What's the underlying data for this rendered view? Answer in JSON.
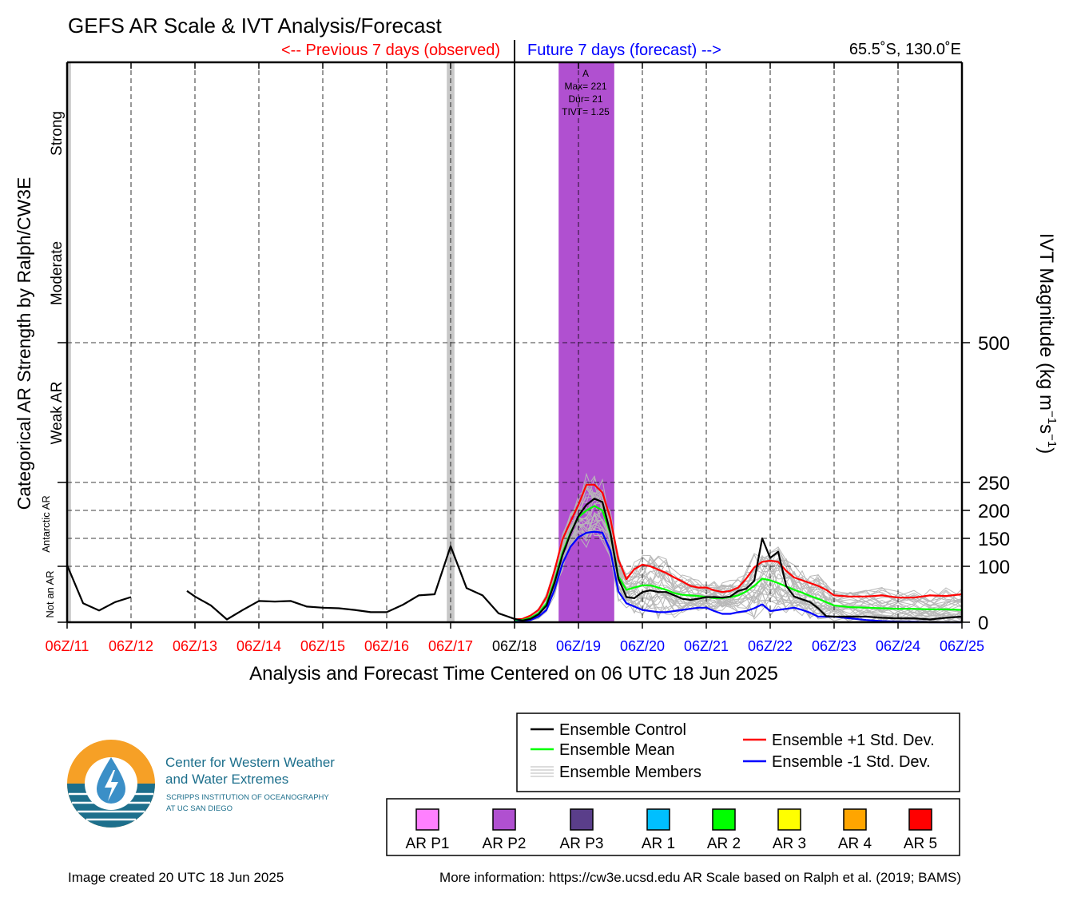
{
  "title": "GEFS AR Scale & IVT Analysis/Forecast",
  "header": {
    "previous_label": "<-- Previous 7 days (observed)",
    "future_label": "Future 7 days (forecast) -->",
    "location": "65.5˚S, 130.0˚E"
  },
  "axes": {
    "xlabel": "Analysis and Forecast Time Centered on 06 UTC 18 Jun 2025",
    "ylabel_left": "Categorical AR Strength by Ralph/CW3E",
    "ylabel_right_main": "IVT Magnitude (kg m",
    "ylabel_right_exp1": "−1",
    "ylabel_right_mid": "s",
    "ylabel_right_exp2": "−1",
    "ylabel_right_end": ")",
    "category_labels": [
      "Not an AR",
      "Antarctic AR",
      "Weak AR",
      "Moderate",
      "Strong"
    ]
  },
  "annotation": {
    "letter": "A",
    "max": "Max= 221",
    "dur": "Dur= 21",
    "tivt": "TIVT= 1.25"
  },
  "legend": {
    "control": "Ensemble Control",
    "mean": "Ensemble Mean",
    "members": "Ensemble Members",
    "plus_sd": "Ensemble +1 Std. Dev.",
    "minus_sd": "Ensemble -1 Std. Dev."
  },
  "ar_scale": [
    {
      "label": "AR P1",
      "color": "#ff80ff"
    },
    {
      "label": "AR P2",
      "color": "#b050d0"
    },
    {
      "label": "AR P3",
      "color": "#5a3e8a"
    },
    {
      "label": "AR 1",
      "color": "#00bfff"
    },
    {
      "label": "AR 2",
      "color": "#00ff00"
    },
    {
      "label": "AR 3",
      "color": "#ffff00"
    },
    {
      "label": "AR 4",
      "color": "#ffa500"
    },
    {
      "label": "AR 5",
      "color": "#ff0000"
    }
  ],
  "logo": {
    "line1": "Center for Western Weather",
    "line2": "and Water Extremes",
    "line3": "SCRIPPS INSTITUTION OF OCEANOGRAPHY",
    "line4": "AT UC SAN DIEGO"
  },
  "footer": {
    "created": "Image created 20 UTC 18 Jun 2025",
    "more_info": "More information: https://cw3e.ucsd.edu AR Scale based on Ralph et al. (2019; BAMS)"
  },
  "colors": {
    "observed": "#ff0000",
    "forecast": "#0000ff",
    "ar_event": "#b050d0",
    "ensemble_mean": "#00ff00",
    "ensemble_plus": "#ff0000",
    "ensemble_minus": "#0000ff",
    "members": "#b8b8b8",
    "observed_ar_bar": "#c8c8c8"
  },
  "chart_data": {
    "type": "line",
    "x_unit": "days since 06Z/11 Jun 2025",
    "xlim": [
      0,
      14
    ],
    "ylim": [
      0,
      1000
    ],
    "y_scale": "IVT 0-250 linear, 250-1000 compressed",
    "xticks": [
      {
        "label": "06Z/11",
        "x": 0,
        "period": "observed"
      },
      {
        "label": "06Z/12",
        "x": 1,
        "period": "observed"
      },
      {
        "label": "06Z/13",
        "x": 2,
        "period": "observed"
      },
      {
        "label": "06Z/14",
        "x": 3,
        "period": "observed"
      },
      {
        "label": "06Z/15",
        "x": 4,
        "period": "observed"
      },
      {
        "label": "06Z/16",
        "x": 5,
        "period": "observed"
      },
      {
        "label": "06Z/17",
        "x": 6,
        "period": "observed"
      },
      {
        "label": "06Z/18",
        "x": 7,
        "period": "now"
      },
      {
        "label": "06Z/19",
        "x": 8,
        "period": "forecast"
      },
      {
        "label": "06Z/20",
        "x": 9,
        "period": "forecast"
      },
      {
        "label": "06Z/21",
        "x": 10,
        "period": "forecast"
      },
      {
        "label": "06Z/22",
        "x": 11,
        "period": "forecast"
      },
      {
        "label": "06Z/23",
        "x": 12,
        "period": "forecast"
      },
      {
        "label": "06Z/24",
        "x": 13,
        "period": "forecast"
      },
      {
        "label": "06Z/25",
        "x": 14,
        "period": "forecast"
      }
    ],
    "yticks": [
      0,
      100,
      150,
      200,
      250,
      500
    ],
    "y_gridlines": [
      100,
      150,
      200,
      250,
      500
    ],
    "observed_ar_periods": [
      [
        0,
        0.06
      ],
      [
        5.94,
        6.06
      ]
    ],
    "ar_event": {
      "x_start": 7.69,
      "x_end": 8.56,
      "ivt_top": 1000,
      "max": 221,
      "duration_h": 21
    },
    "series": [
      {
        "name": "Ensemble Control",
        "color": "#000000",
        "segments": [
          [
            [
              0,
              102
            ],
            [
              0.25,
              34
            ],
            [
              0.5,
              21
            ],
            [
              0.75,
              36
            ],
            [
              1,
              45
            ]
          ],
          [
            [
              1.875,
              56
            ],
            [
              2,
              46
            ],
            [
              2.25,
              30
            ],
            [
              2.5,
              5
            ],
            [
              2.75,
              22
            ],
            [
              3,
              38
            ],
            [
              3.25,
              37
            ],
            [
              3.5,
              38
            ],
            [
              3.75,
              28
            ],
            [
              4,
              26
            ],
            [
              4.25,
              25
            ],
            [
              4.5,
              22
            ],
            [
              4.75,
              18
            ],
            [
              5,
              18
            ],
            [
              5.25,
              31
            ],
            [
              5.5,
              48
            ],
            [
              5.75,
              50
            ],
            [
              6,
              136
            ],
            [
              6.25,
              61
            ],
            [
              6.5,
              48
            ],
            [
              6.75,
              16
            ],
            [
              7,
              6
            ],
            [
              7.125,
              3
            ],
            [
              7.25,
              6
            ],
            [
              7.375,
              14
            ],
            [
              7.5,
              30
            ],
            [
              7.625,
              70
            ],
            [
              7.75,
              120
            ],
            [
              7.875,
              158
            ],
            [
              8,
              190
            ],
            [
              8.125,
              210
            ],
            [
              8.25,
              221
            ],
            [
              8.375,
              215
            ],
            [
              8.5,
              160
            ],
            [
              8.625,
              78
            ],
            [
              8.75,
              45
            ],
            [
              8.875,
              43
            ],
            [
              9,
              54
            ],
            [
              9.125,
              57
            ],
            [
              9.25,
              54
            ],
            [
              9.375,
              54
            ],
            [
              9.5,
              48
            ],
            [
              9.625,
              42
            ],
            [
              9.75,
              40
            ],
            [
              9.875,
              42
            ],
            [
              10,
              45
            ],
            [
              10.125,
              45
            ],
            [
              10.25,
              44
            ],
            [
              10.375,
              46
            ],
            [
              10.5,
              56
            ],
            [
              10.625,
              60
            ],
            [
              10.75,
              74
            ],
            [
              10.875,
              150
            ],
            [
              11,
              115
            ],
            [
              11.125,
              126
            ],
            [
              11.25,
              65
            ],
            [
              11.375,
              46
            ],
            [
              11.5,
              41
            ],
            [
              11.625,
              36
            ],
            [
              11.75,
              25
            ],
            [
              11.875,
              11
            ],
            [
              12,
              10
            ],
            [
              12.25,
              10
            ],
            [
              12.5,
              10
            ],
            [
              12.75,
              8
            ],
            [
              13,
              7
            ],
            [
              13.25,
              7
            ],
            [
              13.5,
              5
            ],
            [
              13.75,
              8
            ],
            [
              14,
              10
            ]
          ]
        ]
      },
      {
        "name": "Ensemble Mean",
        "color": "#00ff00",
        "segments": [
          [
            [
              7,
              4
            ],
            [
              7.125,
              4
            ],
            [
              7.25,
              8
            ],
            [
              7.375,
              16
            ],
            [
              7.5,
              34
            ],
            [
              7.625,
              74
            ],
            [
              7.75,
              124
            ],
            [
              7.875,
              160
            ],
            [
              8,
              188
            ],
            [
              8.125,
              200
            ],
            [
              8.25,
              208
            ],
            [
              8.375,
              200
            ],
            [
              8.5,
              158
            ],
            [
              8.625,
              82
            ],
            [
              8.75,
              58
            ],
            [
              8.875,
              62
            ],
            [
              9,
              66
            ],
            [
              9.125,
              66
            ],
            [
              9.25,
              62
            ],
            [
              9.375,
              58
            ],
            [
              9.5,
              52
            ],
            [
              9.625,
              49
            ],
            [
              9.75,
              48
            ],
            [
              9.875,
              47
            ],
            [
              10,
              45
            ],
            [
              10.125,
              43
            ],
            [
              10.25,
              43
            ],
            [
              10.375,
              45
            ],
            [
              10.5,
              48
            ],
            [
              10.625,
              55
            ],
            [
              10.75,
              65
            ],
            [
              10.875,
              78
            ],
            [
              11,
              75
            ],
            [
              11.125,
              70
            ],
            [
              11.25,
              64
            ],
            [
              11.375,
              58
            ],
            [
              11.5,
              53
            ],
            [
              11.625,
              47
            ],
            [
              11.75,
              42
            ],
            [
              11.875,
              36
            ],
            [
              12,
              30
            ],
            [
              12.25,
              27
            ],
            [
              12.5,
              26
            ],
            [
              12.75,
              25
            ],
            [
              13,
              24
            ],
            [
              13.25,
              24
            ],
            [
              13.5,
              23
            ],
            [
              13.75,
              23
            ],
            [
              14,
              22
            ]
          ]
        ]
      },
      {
        "name": "Ensemble +1 Std. Dev.",
        "color": "#ff0000",
        "segments": [
          [
            [
              7,
              5
            ],
            [
              7.125,
              6
            ],
            [
              7.25,
              12
            ],
            [
              7.375,
              22
            ],
            [
              7.5,
              45
            ],
            [
              7.625,
              92
            ],
            [
              7.75,
              148
            ],
            [
              7.875,
              180
            ],
            [
              8,
              210
            ],
            [
              8.125,
              246
            ],
            [
              8.25,
              246
            ],
            [
              8.375,
              232
            ],
            [
              8.5,
              185
            ],
            [
              8.625,
              112
            ],
            [
              8.75,
              77
            ],
            [
              8.875,
              95
            ],
            [
              9,
              103
            ],
            [
              9.125,
              100
            ],
            [
              9.25,
              94
            ],
            [
              9.375,
              88
            ],
            [
              9.5,
              80
            ],
            [
              9.625,
              73
            ],
            [
              9.75,
              65
            ],
            [
              9.875,
              62
            ],
            [
              10,
              62
            ],
            [
              10.125,
              57
            ],
            [
              10.25,
              54
            ],
            [
              10.375,
              56
            ],
            [
              10.5,
              62
            ],
            [
              10.625,
              78
            ],
            [
              10.75,
              98
            ],
            [
              10.875,
              108
            ],
            [
              11,
              110
            ],
            [
              11.125,
              108
            ],
            [
              11.25,
              92
            ],
            [
              11.375,
              80
            ],
            [
              11.5,
              75
            ],
            [
              11.625,
              70
            ],
            [
              11.75,
              65
            ],
            [
              11.875,
              58
            ],
            [
              12,
              48
            ],
            [
              12.25,
              46
            ],
            [
              12.5,
              46
            ],
            [
              12.75,
              48
            ],
            [
              13,
              44
            ],
            [
              13.25,
              44
            ],
            [
              13.5,
              48
            ],
            [
              13.75,
              47
            ],
            [
              14,
              50
            ]
          ]
        ]
      },
      {
        "name": "Ensemble -1 Std. Dev.",
        "color": "#0000ff",
        "segments": [
          [
            [
              7,
              2
            ],
            [
              7.125,
              2
            ],
            [
              7.25,
              4
            ],
            [
              7.375,
              10
            ],
            [
              7.5,
              22
            ],
            [
              7.625,
              58
            ],
            [
              7.75,
              105
            ],
            [
              7.875,
              135
            ],
            [
              8,
              152
            ],
            [
              8.125,
              160
            ],
            [
              8.25,
              162
            ],
            [
              8.375,
              160
            ],
            [
              8.5,
              128
            ],
            [
              8.625,
              55
            ],
            [
              8.75,
              34
            ],
            [
              8.875,
              28
            ],
            [
              9,
              22
            ],
            [
              9.125,
              20
            ],
            [
              9.25,
              18
            ],
            [
              9.375,
              18
            ],
            [
              9.5,
              20
            ],
            [
              9.625,
              22
            ],
            [
              9.75,
              24
            ],
            [
              9.875,
              26
            ],
            [
              10,
              26
            ],
            [
              10.125,
              20
            ],
            [
              10.25,
              15
            ],
            [
              10.375,
              15
            ],
            [
              10.5,
              18
            ],
            [
              10.625,
              20
            ],
            [
              10.75,
              25
            ],
            [
              10.875,
              32
            ],
            [
              11,
              20
            ],
            [
              11.125,
              22
            ],
            [
              11.25,
              24
            ],
            [
              11.375,
              26
            ],
            [
              11.5,
              22
            ],
            [
              11.625,
              17
            ],
            [
              11.75,
              10
            ],
            [
              11.875,
              10
            ],
            [
              12,
              10
            ],
            [
              12.25,
              7
            ],
            [
              12.5,
              4
            ],
            [
              12.75,
              2
            ],
            [
              13,
              1
            ],
            [
              13.25,
              1
            ],
            [
              13.5,
              0
            ],
            [
              13.75,
              0
            ],
            [
              14,
              0
            ]
          ]
        ]
      }
    ]
  }
}
